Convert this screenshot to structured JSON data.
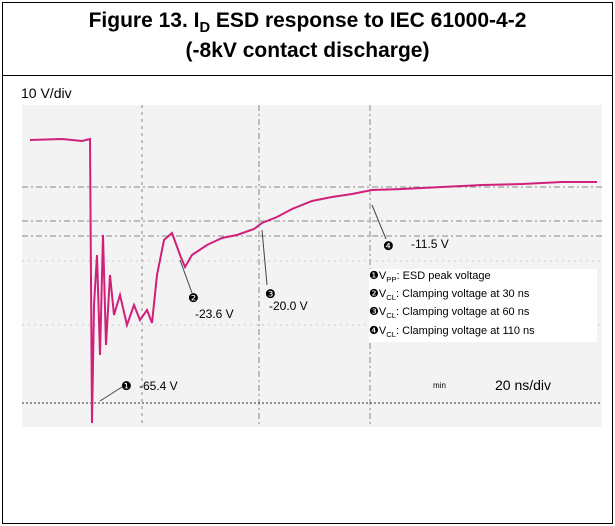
{
  "title": {
    "line1": [
      "Figure 13. I",
      "D",
      " ESD response to IEC 61000-4-2"
    ],
    "line2": "(-8kV contact discharge)"
  },
  "scale": {
    "vertical": "10 V/div",
    "horizontal": "20 ns/div",
    "mode": "min"
  },
  "annotations": [
    {
      "marker": "❶",
      "label": "-65.4 V"
    },
    {
      "marker": "❷",
      "label": "-23.6 V"
    },
    {
      "marker": "❸",
      "label": "-20.0 V"
    },
    {
      "marker": "❹",
      "label": "-11.5 V"
    }
  ],
  "legend": [
    {
      "marker": "❶",
      "symbol": "V",
      "sub": "PP",
      "text": ": ESD peak voltage"
    },
    {
      "marker": "❷",
      "symbol": "V",
      "sub": "CL",
      "text": ": Clamping voltage at 30 ns"
    },
    {
      "marker": "❸",
      "symbol": "V",
      "sub": "CL",
      "text": ": Clamping voltage at 60 ns"
    },
    {
      "marker": "❹",
      "symbol": "V",
      "sub": "CL",
      "text": ": Clamping voltage at 110 ns"
    }
  ]
}
